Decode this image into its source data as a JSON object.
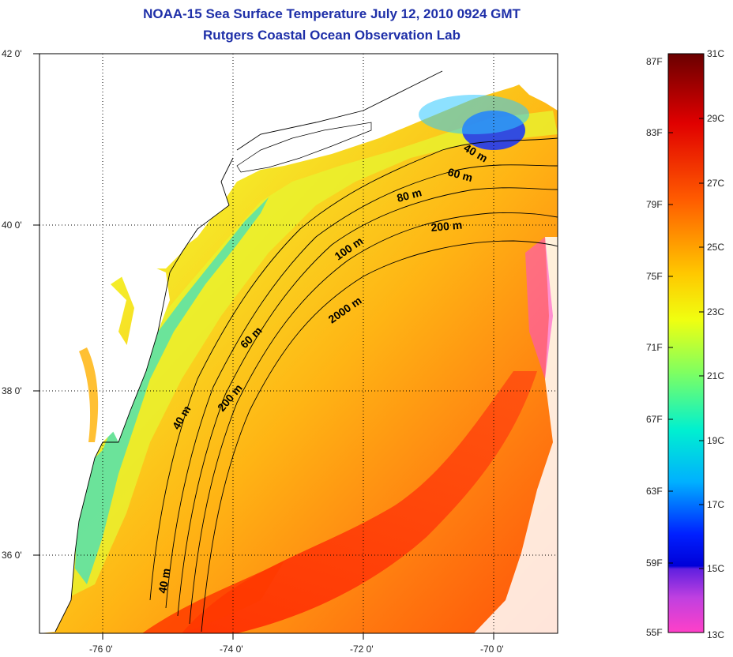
{
  "title": {
    "line1": "NOAA-15 Sea Surface Temperature July 12, 2010 0924 GMT",
    "line2": "Rutgers Coastal Ocean Observation Lab"
  },
  "map": {
    "lon_ticks": [
      "-76 0'",
      "-74 0'",
      "-72 0'",
      "-70 0'"
    ],
    "lat_ticks": [
      "42 0'",
      "40 0'",
      "38 0'",
      "36 0'"
    ],
    "isobath_labels": [
      "40 m",
      "60 m",
      "80 m",
      "200 m",
      "100 m",
      "2000 m",
      "60 m",
      "200 m",
      "40 m",
      "40 m"
    ]
  },
  "colorbar": {
    "fahrenheit_ticks": [
      "87F",
      "83F",
      "79F",
      "75F",
      "71F",
      "67F",
      "63F",
      "59F",
      "55F"
    ],
    "celsius_ticks": [
      "31C",
      "29C",
      "27C",
      "25C",
      "23C",
      "21C",
      "19C",
      "17C",
      "15C",
      "13C"
    ],
    "colors": {
      "hot": "#7a0000",
      "warm": "#ff2a00",
      "mid": "#ffe400",
      "cool": "#00e8e0",
      "cold": "#0010ff",
      "coldest": "#ff40c0"
    }
  }
}
